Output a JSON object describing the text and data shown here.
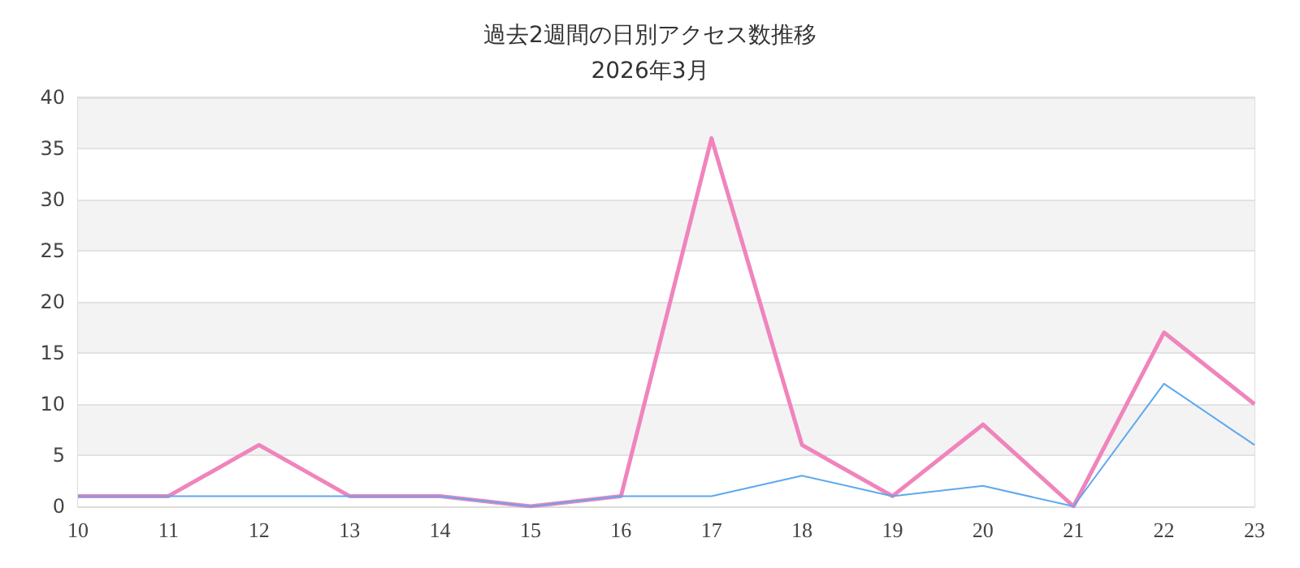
{
  "chart_data": {
    "type": "line",
    "title": "過去2週間の日別アクセス数推移",
    "subtitle": "2026年3月",
    "categories": [
      "10",
      "11",
      "12",
      "13",
      "14",
      "15",
      "16",
      "17",
      "18",
      "19",
      "20",
      "21",
      "22",
      "23"
    ],
    "series": [
      {
        "color": "#f084bc",
        "values": [
          1,
          1,
          6,
          1,
          1,
          0,
          1,
          36,
          6,
          1,
          8,
          0,
          17,
          10
        ]
      },
      {
        "color": "#5ea8ee",
        "values": [
          1,
          1,
          1,
          1,
          1,
          0,
          1,
          1,
          3,
          1,
          2,
          0,
          12,
          6
        ]
      }
    ],
    "ylim": [
      0,
      40
    ],
    "yticks": [
      0,
      5,
      10,
      15,
      20,
      25,
      30,
      35,
      40
    ],
    "grid": "y",
    "marker": "none",
    "line_style": "solid"
  }
}
